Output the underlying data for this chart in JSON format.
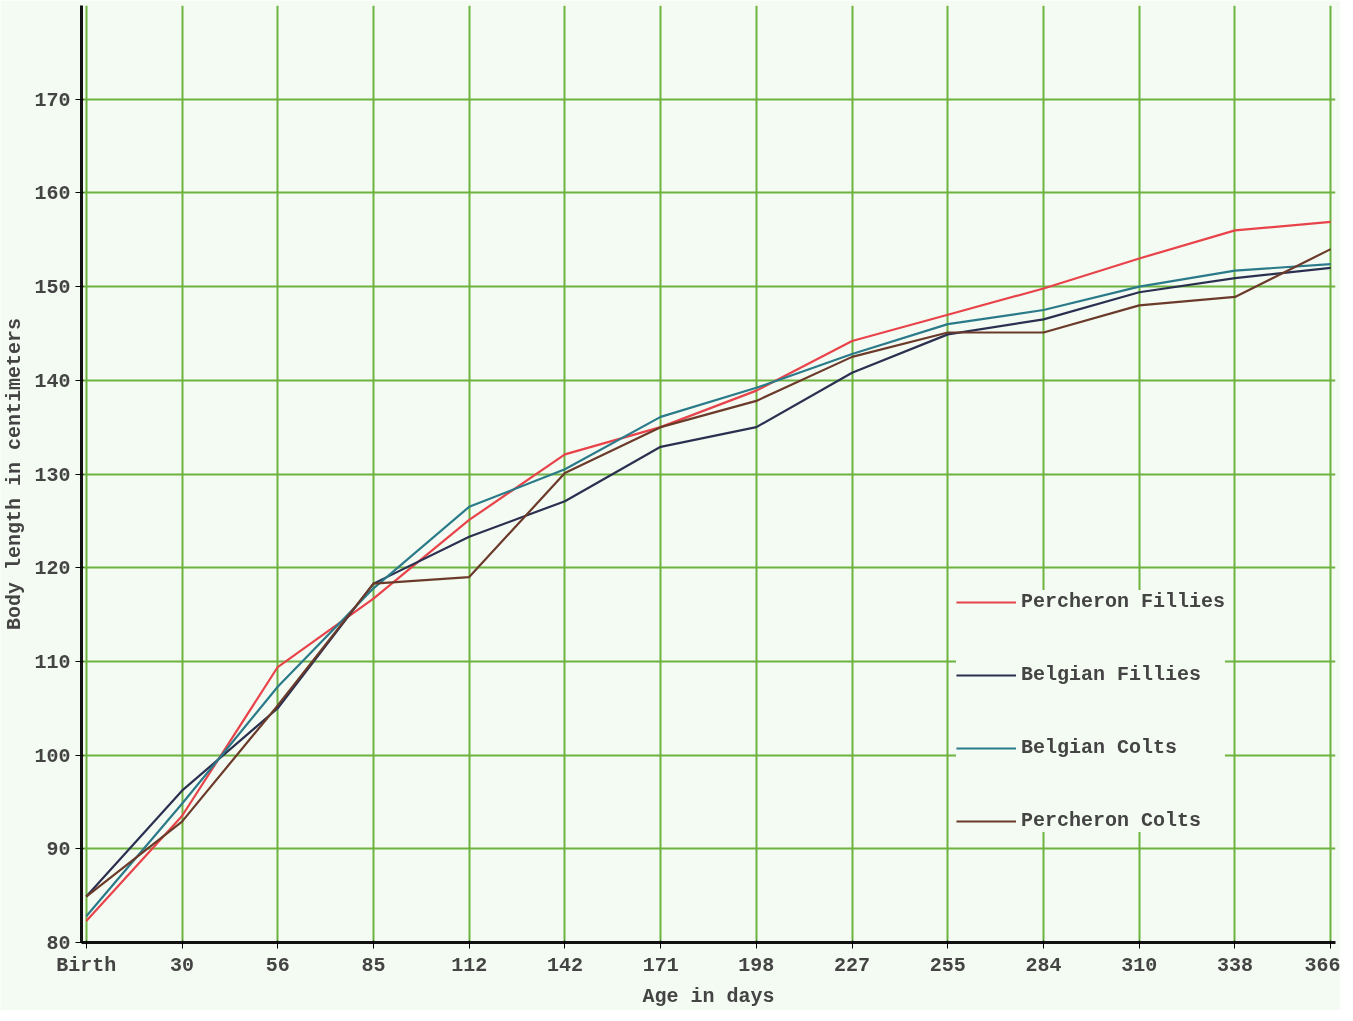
{
  "chart_data": {
    "type": "line",
    "xlabel": "Age in days",
    "ylabel": "Body length in centimeters",
    "categories": [
      "Birth",
      "30",
      "56",
      "85",
      "112",
      "142",
      "171",
      "198",
      "227",
      "255",
      "284",
      "310",
      "338",
      "366"
    ],
    "ylim": [
      80,
      180
    ],
    "yticks": [
      80,
      90,
      100,
      110,
      120,
      130,
      140,
      150,
      160,
      170
    ],
    "grid": true,
    "legend": "bottom right",
    "marker": "none",
    "line_style": "solid",
    "series": [
      {
        "name": "Percheron Fillies",
        "color": "#e8434a",
        "values": [
          82.3,
          93.5,
          109.4,
          116.7,
          125.1,
          132.1,
          135.0,
          138.9,
          144.2,
          147.0,
          149.8,
          153.0,
          156.0,
          156.9
        ]
      },
      {
        "name": "Belgian Fillies",
        "color": "#2b3050",
        "values": [
          84.9,
          96.2,
          105.0,
          118.3,
          123.3,
          127.1,
          132.9,
          135.0,
          140.8,
          144.9,
          146.5,
          149.4,
          150.9,
          152.0
        ]
      },
      {
        "name": "Belgian Colts",
        "color": "#2a7a8a",
        "values": [
          82.8,
          94.8,
          107.3,
          117.8,
          126.5,
          130.5,
          136.1,
          139.2,
          142.8,
          146.0,
          147.5,
          150.0,
          151.7,
          152.4
        ]
      },
      {
        "name": "Percheron Colts",
        "color": "#6b3a2a",
        "values": [
          84.9,
          92.9,
          105.3,
          118.3,
          119.0,
          130.1,
          135.0,
          137.8,
          142.5,
          145.1,
          145.1,
          148.0,
          148.9,
          154.0
        ]
      }
    ]
  }
}
